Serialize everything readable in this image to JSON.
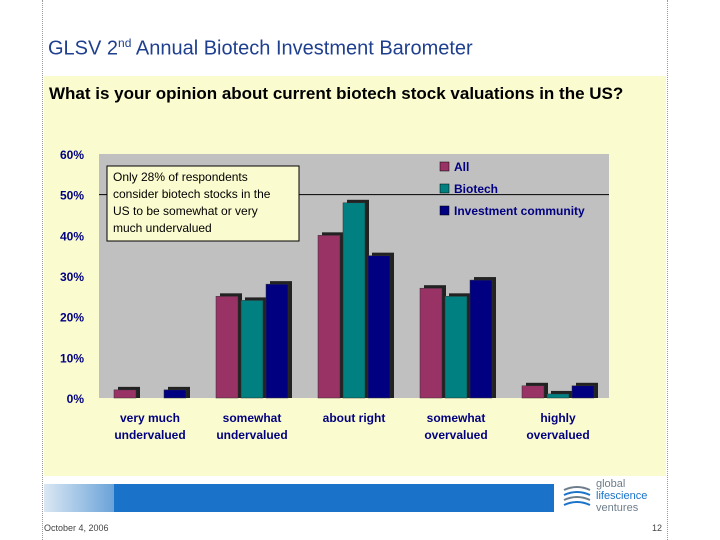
{
  "slide": {
    "title_main": "GLSV 2",
    "title_sup": "nd",
    "title_rest": " Annual Biotech Investment Barometer",
    "question": "What is your opinion about current biotech stock valuations in the US?",
    "footer_date": "October 4, 2006",
    "page_number": "12",
    "logo_line1": "global",
    "logo_line2": "lifescience",
    "logo_line3": "ventures"
  },
  "chart_data": {
    "type": "bar",
    "categories": [
      "very much\nundervalued",
      "somewhat\nundervalued",
      "about right",
      "somewhat\novervalued",
      "highly\novervalued"
    ],
    "series": [
      {
        "name": "All",
        "color": "#993366",
        "values": [
          2,
          25,
          40,
          27,
          3
        ]
      },
      {
        "name": "Biotech",
        "color": "#008080",
        "values": [
          0,
          24,
          48,
          25,
          1
        ]
      },
      {
        "name": "Investment community",
        "color": "#000080",
        "values": [
          2,
          28,
          35,
          29,
          3
        ]
      }
    ],
    "yticks": [
      "0%",
      "10%",
      "20%",
      "30%",
      "40%",
      "50%",
      "60%"
    ],
    "ylim": [
      0,
      60
    ],
    "annotation": "Only 28% of respondents consider biotech stocks in the US to be somewhat or very much undervalued",
    "legend_position": "top-right",
    "plot_background": "#c0c0c0"
  }
}
